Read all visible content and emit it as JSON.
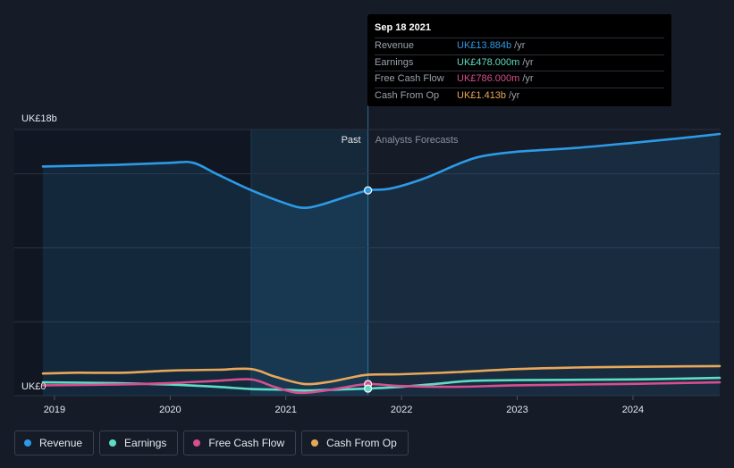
{
  "chart_data": {
    "type": "line",
    "y_axis_label": "UK£18b",
    "y_zero_label": "UK£0",
    "ylim": [
      0,
      18
    ],
    "xlim": [
      2018.9,
      2024.75
    ],
    "x_ticks": [
      {
        "value": 2019,
        "label": "2019"
      },
      {
        "value": 2020,
        "label": "2020"
      },
      {
        "value": 2021,
        "label": "2021"
      },
      {
        "value": 2022,
        "label": "2022"
      },
      {
        "value": 2023,
        "label": "2023"
      },
      {
        "value": 2024,
        "label": "2024"
      }
    ],
    "grid_y_values": [
      5,
      10,
      15,
      18
    ],
    "highlight_start": 2020.7,
    "past_end": 2021.71,
    "past_label": "Past",
    "forecast_label": "Analysts Forecasts",
    "series": [
      {
        "key": "revenue",
        "name": "Revenue",
        "color": "#2d9ae6",
        "points": [
          [
            2018.9,
            15.5
          ],
          [
            2019.5,
            15.6
          ],
          [
            2020.0,
            15.75
          ],
          [
            2020.2,
            15.75
          ],
          [
            2020.4,
            15.0
          ],
          [
            2020.7,
            13.9
          ],
          [
            2021.0,
            13.0
          ],
          [
            2021.15,
            12.7
          ],
          [
            2021.3,
            12.9
          ],
          [
            2021.5,
            13.4
          ],
          [
            2021.71,
            13.884
          ],
          [
            2021.9,
            14.0
          ],
          [
            2022.2,
            14.7
          ],
          [
            2022.5,
            15.7
          ],
          [
            2022.7,
            16.2
          ],
          [
            2023.0,
            16.5
          ],
          [
            2023.5,
            16.75
          ],
          [
            2024.0,
            17.1
          ],
          [
            2024.4,
            17.4
          ],
          [
            2024.75,
            17.7
          ]
        ]
      },
      {
        "key": "earnings",
        "name": "Earnings",
        "color": "#5fdcc4",
        "points": [
          [
            2018.9,
            0.9
          ],
          [
            2019.5,
            0.85
          ],
          [
            2020.0,
            0.75
          ],
          [
            2020.4,
            0.6
          ],
          [
            2020.7,
            0.45
          ],
          [
            2021.0,
            0.4
          ],
          [
            2021.15,
            0.35
          ],
          [
            2021.4,
            0.4
          ],
          [
            2021.71,
            0.478
          ],
          [
            2022.0,
            0.6
          ],
          [
            2022.3,
            0.8
          ],
          [
            2022.6,
            1.0
          ],
          [
            2023.0,
            1.05
          ],
          [
            2024.0,
            1.1
          ],
          [
            2024.75,
            1.2
          ]
        ]
      },
      {
        "key": "fcf",
        "name": "Free Cash Flow",
        "color": "#d64f8e",
        "points": [
          [
            2018.9,
            0.7
          ],
          [
            2019.5,
            0.75
          ],
          [
            2020.0,
            0.85
          ],
          [
            2020.4,
            1.0
          ],
          [
            2020.7,
            1.1
          ],
          [
            2020.9,
            0.6
          ],
          [
            2021.1,
            0.2
          ],
          [
            2021.3,
            0.3
          ],
          [
            2021.5,
            0.55
          ],
          [
            2021.71,
            0.786
          ],
          [
            2022.0,
            0.65
          ],
          [
            2022.5,
            0.6
          ],
          [
            2023.0,
            0.7
          ],
          [
            2024.0,
            0.8
          ],
          [
            2024.75,
            0.9
          ]
        ]
      },
      {
        "key": "cfo",
        "name": "Cash From Op",
        "color": "#e8a85a",
        "points": [
          [
            2018.9,
            1.5
          ],
          [
            2019.2,
            1.55
          ],
          [
            2019.6,
            1.55
          ],
          [
            2020.0,
            1.7
          ],
          [
            2020.4,
            1.75
          ],
          [
            2020.7,
            1.8
          ],
          [
            2020.9,
            1.3
          ],
          [
            2021.15,
            0.8
          ],
          [
            2021.35,
            0.9
          ],
          [
            2021.55,
            1.2
          ],
          [
            2021.71,
            1.413
          ],
          [
            2022.0,
            1.45
          ],
          [
            2022.5,
            1.6
          ],
          [
            2023.0,
            1.8
          ],
          [
            2023.5,
            1.9
          ],
          [
            2024.0,
            1.95
          ],
          [
            2024.75,
            2.0
          ]
        ]
      }
    ],
    "highlight_markers": [
      {
        "series": "revenue",
        "x": 2021.71,
        "y": 13.884
      },
      {
        "series": "fcf",
        "x": 2021.71,
        "y": 0.786
      },
      {
        "series": "earnings",
        "x": 2021.71,
        "y": 0.478
      }
    ]
  },
  "tooltip": {
    "date": "Sep 18 2021",
    "rows": [
      {
        "name": "Revenue",
        "value": "UK£13.884b",
        "unit": "/yr",
        "color": "#2d9ae6"
      },
      {
        "name": "Earnings",
        "value": "UK£478.000m",
        "unit": "/yr",
        "color": "#5fdcc4"
      },
      {
        "name": "Free Cash Flow",
        "value": "UK£786.000m",
        "unit": "/yr",
        "color": "#d64f8e"
      },
      {
        "name": "Cash From Op",
        "value": "UK£1.413b",
        "unit": "/yr",
        "color": "#e8a85a"
      }
    ]
  },
  "legend": [
    {
      "label": "Revenue",
      "color": "#2d9ae6"
    },
    {
      "label": "Earnings",
      "color": "#5fdcc4"
    },
    {
      "label": "Free Cash Flow",
      "color": "#d64f8e"
    },
    {
      "label": "Cash From Op",
      "color": "#e8a85a"
    }
  ]
}
